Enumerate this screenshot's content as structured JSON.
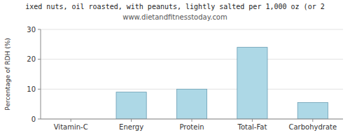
{
  "chart_data": {
    "type": "bar",
    "title": "ixed nuts, oil roasted, with peanuts, lightly salted per 1,000 oz (or 2",
    "subtitle": "www.dietandfitnesstoday.com",
    "categories": [
      "Vitamin-C",
      "Energy",
      "Protein",
      "Total-Fat",
      "Carbohydrate"
    ],
    "values": [
      0,
      9,
      10,
      24,
      5.5
    ],
    "color": "#add8e6",
    "ylabel": "Percentage of RDH (%)",
    "ylim": [
      0,
      30
    ],
    "yticks": [
      0,
      10,
      20,
      30
    ],
    "grid": true
  }
}
